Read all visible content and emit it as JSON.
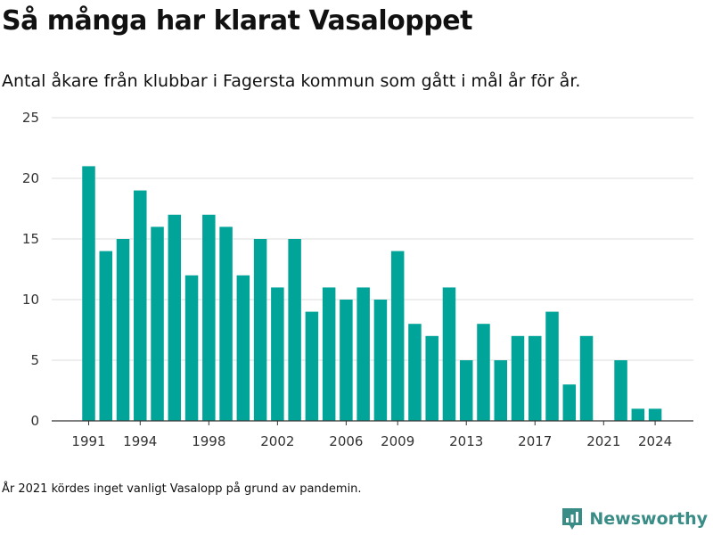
{
  "header": {
    "title": "Så många har klarat Vasaloppet",
    "subtitle": "Antal åkare från klubbar i Fagersta kommun som gått i mål år för år."
  },
  "footnote": "År 2021 kördes inget vanligt Vasalopp på grund av pandemin.",
  "brand": {
    "name": "Newsworthy",
    "icon": "newsworthy-chart-bubble-icon"
  },
  "colors": {
    "bar": "#00a499",
    "grid": "#dddddd",
    "axis": "#333333",
    "text": "#333333",
    "brand": "#3a8c86"
  },
  "chart_data": {
    "type": "bar",
    "title": "Så många har klarat Vasaloppet",
    "subtitle": "Antal åkare från klubbar i Fagersta kommun som gått i mål år för år.",
    "xlabel": "",
    "ylabel": "",
    "ylim": [
      0,
      25
    ],
    "yticks": [
      0,
      5,
      10,
      15,
      20,
      25
    ],
    "grid": true,
    "x": [
      1991,
      1992,
      1993,
      1994,
      1995,
      1996,
      1997,
      1998,
      1999,
      2000,
      2001,
      2002,
      2003,
      2004,
      2005,
      2006,
      2007,
      2008,
      2009,
      2010,
      2011,
      2012,
      2013,
      2014,
      2015,
      2016,
      2017,
      2018,
      2019,
      2020,
      2021,
      2022,
      2023,
      2024
    ],
    "values": [
      21,
      14,
      15,
      19,
      16,
      17,
      12,
      17,
      16,
      12,
      15,
      11,
      15,
      9,
      11,
      10,
      11,
      10,
      14,
      8,
      7,
      11,
      5,
      8,
      5,
      7,
      7,
      9,
      3,
      7,
      0,
      5,
      1,
      1
    ],
    "xticks": [
      "1991",
      "1994",
      "1998",
      "2002",
      "2006",
      "2009",
      "2013",
      "2017",
      "2021",
      "2024"
    ]
  }
}
